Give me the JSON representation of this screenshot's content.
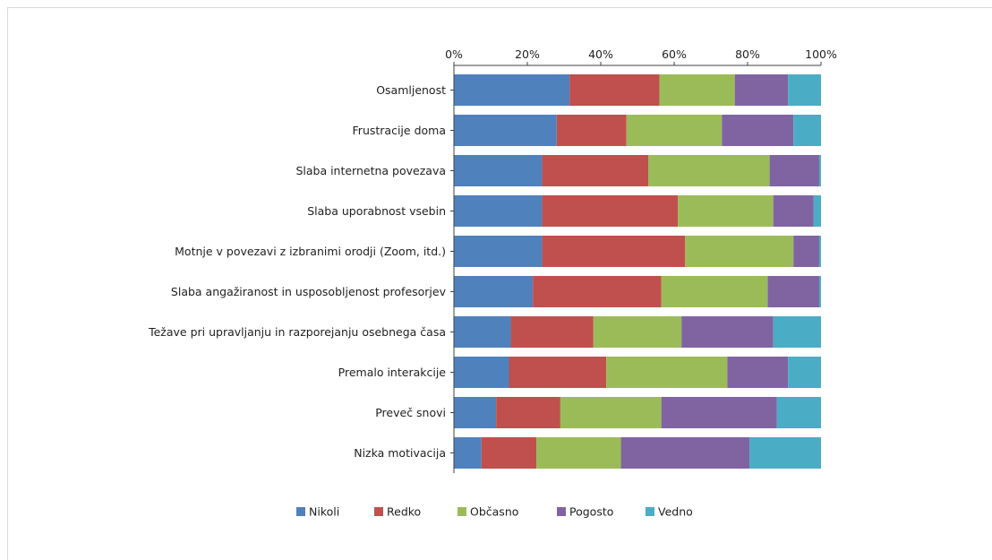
{
  "chart_data": {
    "type": "bar",
    "orientation": "horizontal",
    "stacked": "percent",
    "xlim": [
      0,
      100
    ],
    "x_ticks": [
      "0%",
      "20%",
      "40%",
      "60%",
      "80%",
      "100%"
    ],
    "categories": [
      "Osamljenost",
      "Frustracije doma",
      "Slaba internetna povezava",
      "Slaba uporabnost vsebin",
      "Motnje v povezavi z izbranimi orodji (Zoom, itd.)",
      "Slaba angažiranost in usposobljenost profesorjev",
      "Težave pri upravljanju in razporejanju osebnega časa",
      "Premalo interakcije ",
      "Preveč snovi ",
      "Nizka motivacija"
    ],
    "series": [
      {
        "name": "Nikoli",
        "color": "#4f81bd",
        "values": [
          31.5,
          28,
          24,
          24,
          24,
          21.5,
          15.5,
          15,
          11.5,
          7.5
        ]
      },
      {
        "name": "Redko",
        "color": "#c0504d",
        "values": [
          24.5,
          19,
          29,
          37,
          39,
          35,
          22.5,
          26.5,
          17.5,
          15
        ]
      },
      {
        "name": "Občasno",
        "color": "#9bbb59",
        "values": [
          20.5,
          26,
          33,
          26,
          29.5,
          29,
          24,
          33,
          27.5,
          23
        ]
      },
      {
        "name": "Pogosto",
        "color": "#8064a2",
        "values": [
          14.5,
          19.5,
          13.5,
          11,
          7,
          14,
          25,
          16.5,
          31.5,
          35
        ]
      },
      {
        "name": "Vedno",
        "color": "#4bacc6",
        "values": [
          9,
          7.5,
          0.5,
          2,
          0.5,
          0.5,
          13,
          9,
          12,
          19.5
        ]
      }
    ],
    "legend_position": "bottom",
    "grid": false
  }
}
